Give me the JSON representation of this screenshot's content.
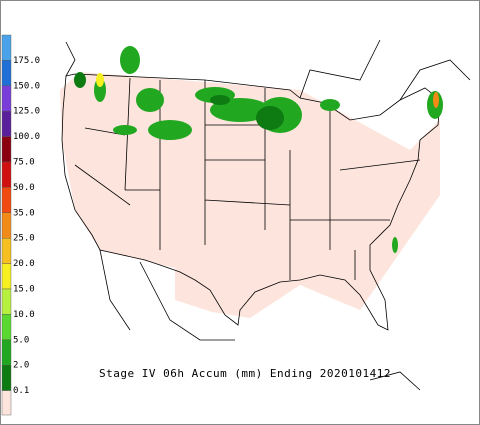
{
  "title": "Stage IV 06h Accum (mm) Ending 2020101412",
  "legend": {
    "labels": [
      "175.0",
      "150.0",
      "125.0",
      "100.0",
      "75.0",
      "50.0",
      "35.0",
      "25.0",
      "20.0",
      "15.0",
      "10.0",
      "5.0",
      "2.0",
      "0.1"
    ],
    "colors": [
      "#4aa3ea",
      "#1f6fd6",
      "#7a3ed8",
      "#5a1f9a",
      "#8a0010",
      "#d01010",
      "#f04a10",
      "#f28a18",
      "#f5c020",
      "#f6f020",
      "#b8f040",
      "#5ad830",
      "#21a820",
      "#0e7a12",
      "#fde4dc"
    ]
  }
}
